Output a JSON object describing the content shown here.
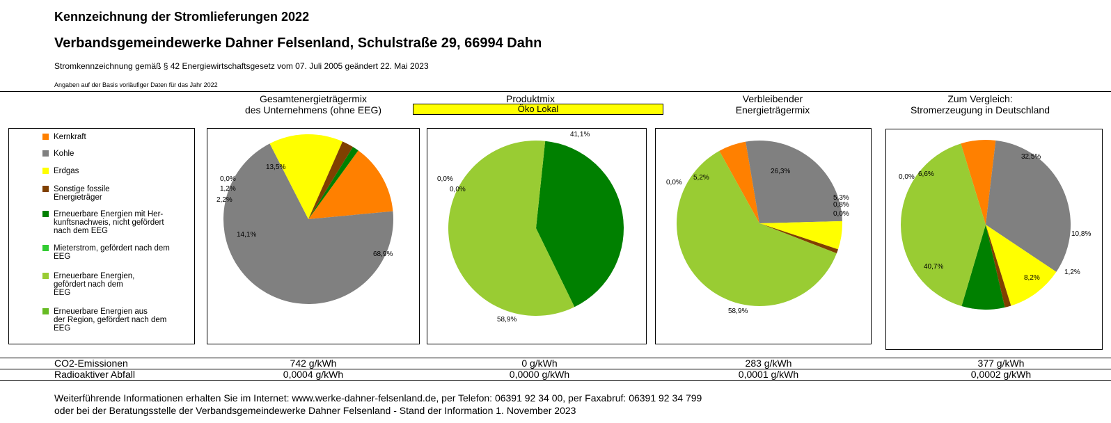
{
  "header": {
    "title": "Kennzeichnung der Stromlieferungen 2022",
    "company": "Verbandsgemeindewerke Dahner Felsenland, Schulstraße 29, 66994 Dahn",
    "legal_note": "Stromkennzeichnung gemäß § 42 Energiewirtschaftsgesetz vom 07. Juli 2005 geändert 22. Mai 2023",
    "basis_note": "Angaben auf der Basis vorläufiger Daten für das Jahr 2022"
  },
  "columns": {
    "c1_line1": "Gesamtenergieträgermix",
    "c1_line2": "des Unternehmens (ohne EEG)",
    "c2_line1": "Produktmix",
    "c2_badge": "Öko Lokal",
    "c3_line1": "Verbleibender",
    "c3_line2": "Energieträgermix",
    "c4_line1": "Zum Vergleich:",
    "c4_line2": "Stromerzeugung in Deutschland"
  },
  "legend": [
    {
      "label": "Kernkraft",
      "color": "#ff8000"
    },
    {
      "label": "Kohle",
      "color": "#808080"
    },
    {
      "label": "Erdgas",
      "color": "#ffff00"
    },
    {
      "label": "Sonstige fossile\nEnergieträger",
      "color": "#804000"
    },
    {
      "label": "Erneuerbare Energien mit Her-\nkunftsnachweis, nicht gefördert\nnach dem EEG",
      "color": "#008000"
    },
    {
      "label": "Mieterstrom, gefördert nach dem\nEEG",
      "color": "#33cc33"
    },
    {
      "label": "Erneuerbare Energien,\ngefördert nach dem\nEEG",
      "color": "#99cc33"
    },
    {
      "label": "Erneuerbare Energien aus\nder Region, gefördert nach dem\nEEG",
      "color": "#66bb22"
    }
  ],
  "chart_data": [
    {
      "type": "pie",
      "categories": [
        "Kernkraft",
        "Kohle",
        "Erdgas",
        "Sonstige fossile Energieträger",
        "Erneuerbare Energien mit Herkunftsnachweis",
        "Mieterstrom"
      ],
      "values": [
        13.5,
        68.9,
        14.1,
        2.2,
        1.2,
        0.0
      ],
      "data_labels": [
        "13,5%",
        "68,9%",
        "14,1%",
        "2,2%",
        "1,2%",
        "0,0%"
      ]
    },
    {
      "type": "pie",
      "categories": [
        "Erneuerbare Energien mit Herkunftsnachweis",
        "Erneuerbare Energien, gefördert nach dem EEG",
        "Kernkraft",
        "Mieterstrom"
      ],
      "values": [
        41.1,
        58.9,
        0.0,
        0.0
      ],
      "data_labels": [
        "41,1%",
        "58,9%",
        "0,0%",
        "0,0%"
      ]
    },
    {
      "type": "pie",
      "categories": [
        "Kernkraft",
        "Kohle",
        "Erdgas",
        "Sonstige fossile Energieträger",
        "Erneuerbare Energien mit Herkunftsnachweis",
        "Erneuerbare Energien, gefördert nach dem EEG",
        "Mieterstrom"
      ],
      "values": [
        5.2,
        26.3,
        5.3,
        0.8,
        0.0,
        58.9,
        0.0
      ],
      "data_labels": [
        "5,2%",
        "26,3%",
        "5,3%",
        "0,8%",
        "0,0%",
        "58,9%",
        "0,0%"
      ]
    },
    {
      "type": "pie",
      "categories": [
        "Kernkraft",
        "Kohle",
        "Erdgas",
        "Sonstige fossile Energieträger",
        "Erneuerbare Energien mit Herkunftsnachweis",
        "Erneuerbare Energien, gefördert nach dem EEG",
        "Mieterstrom"
      ],
      "values": [
        6.6,
        32.5,
        10.8,
        1.2,
        8.2,
        40.7,
        0.0
      ],
      "data_labels": [
        "6,6%",
        "32,5%",
        "10,8%",
        "1,2%",
        "8,2%",
        "40,7%",
        "0,0%"
      ]
    }
  ],
  "table": {
    "co2_label": "CO2-Emissionen",
    "co2_values": [
      "742 g/kWh",
      "0 g/kWh",
      "283 g/kWh",
      "377 g/kWh"
    ],
    "waste_label": "Radioaktiver Abfall",
    "waste_values": [
      "0,0004 g/kWh",
      "0,0000 g/kWh",
      "0,0001 g/kWh",
      "0,0002 g/kWh"
    ]
  },
  "footer": {
    "line1": "Weiterführende Informationen erhalten Sie im Internet: www.werke-dahner-felsenland.de, per Telefon: 06391 92 34 00, per Faxabruf: 06391 92 34 799",
    "line2": "oder bei der Beratungsstelle der Verbandsgemeindewerke Dahner Felsenland - Stand der Information 1. November 2023"
  }
}
